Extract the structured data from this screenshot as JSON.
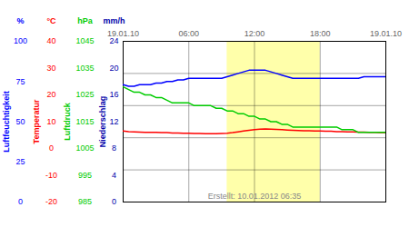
{
  "chart_data": {
    "type": "line",
    "annotation": "Erstellt: 10.01.2012 06:35",
    "x": [
      0,
      0.5,
      1,
      1.5,
      2,
      2.5,
      3,
      3.5,
      4,
      4.5,
      5,
      5.5,
      6,
      6.5,
      7,
      7.5,
      8,
      8.5,
      9,
      9.5,
      10,
      10.5,
      11,
      11.5,
      12,
      12.5,
      13,
      13.5,
      14,
      14.5,
      15,
      15.5,
      16,
      16.5,
      17,
      17.5,
      18,
      18.5,
      19,
      19.5,
      20,
      20.5,
      21,
      21.5,
      22,
      22.5,
      23,
      23.5,
      24
    ],
    "xlim": [
      0,
      24
    ],
    "xticks": [
      {
        "value": 0,
        "label": "19.01.10"
      },
      {
        "value": 6,
        "label": "06:00"
      },
      {
        "value": 12,
        "label": "12:00"
      },
      {
        "value": 18,
        "label": "18:00"
      },
      {
        "value": 24,
        "label": "19.01.10"
      }
    ],
    "highlight_x": [
      9.5,
      18.0
    ],
    "highlight_color": "#ffffaa",
    "grid": true,
    "y_axes": [
      {
        "label": "Luftfeuchtigkeit",
        "unit": "%",
        "color": "#0000ff",
        "lim": [
          0,
          100
        ],
        "ticks": [
          100,
          75,
          50,
          25,
          0
        ]
      },
      {
        "label": "Temperatur",
        "unit": "°C",
        "color": "#ff0000",
        "lim": [
          -20,
          40
        ],
        "ticks": [
          40,
          30,
          20,
          10,
          0,
          -10,
          -20
        ]
      },
      {
        "label": "Luftdruck",
        "unit": "hPa",
        "color": "#00cc00",
        "lim": [
          985,
          1045
        ],
        "ticks": [
          1045,
          1035,
          1025,
          1015,
          1005,
          995,
          985
        ]
      },
      {
        "label": "Niederschlag",
        "unit": "mm/h",
        "color": "#0000aa",
        "lim": [
          0,
          24
        ],
        "ticks": [
          24,
          20,
          16,
          12,
          8,
          4,
          0
        ]
      }
    ],
    "series": [
      {
        "axis": "Luftfeuchtigkeit",
        "color": "#0000ff",
        "values": [
          73,
          72,
          72,
          73,
          73,
          73,
          74,
          74,
          75,
          75,
          76,
          76,
          77,
          77,
          77,
          77,
          77,
          77,
          77,
          78,
          79,
          80,
          81,
          82,
          82,
          82,
          82,
          81,
          80,
          79,
          78,
          77,
          77,
          77,
          77,
          77,
          77,
          77,
          77,
          77,
          77,
          77,
          77,
          77,
          78,
          78,
          78,
          78,
          78
        ]
      },
      {
        "axis": "Luftdruck",
        "color": "#00cc00",
        "values": [
          1028,
          1027,
          1026,
          1026,
          1025,
          1025,
          1024,
          1024,
          1023,
          1022,
          1022,
          1022,
          1022,
          1021,
          1021,
          1021,
          1021,
          1020,
          1020,
          1019,
          1019,
          1018,
          1018,
          1017,
          1017,
          1016,
          1016,
          1015,
          1015,
          1014,
          1014,
          1013,
          1013,
          1013,
          1013,
          1013,
          1013,
          1013,
          1013,
          1013,
          1012,
          1012,
          1012,
          1011,
          1011,
          1011,
          1011,
          1011,
          1011
        ]
      },
      {
        "axis": "Temperatur",
        "color": "#ff0000",
        "values": [
          6.5,
          6.3,
          6.2,
          6.1,
          6.0,
          6.0,
          6.0,
          5.9,
          5.9,
          5.8,
          5.8,
          5.7,
          5.7,
          5.6,
          5.6,
          5.5,
          5.5,
          5.5,
          5.6,
          5.7,
          5.9,
          6.2,
          6.5,
          6.8,
          7.0,
          7.2,
          7.3,
          7.2,
          7.1,
          7.0,
          6.9,
          6.8,
          6.7,
          6.6,
          6.6,
          6.5,
          6.5,
          6.4,
          6.4,
          6.3,
          6.3,
          6.2,
          6.2,
          6.1,
          6.1,
          6.0,
          6.0,
          5.9,
          5.9
        ]
      }
    ]
  }
}
